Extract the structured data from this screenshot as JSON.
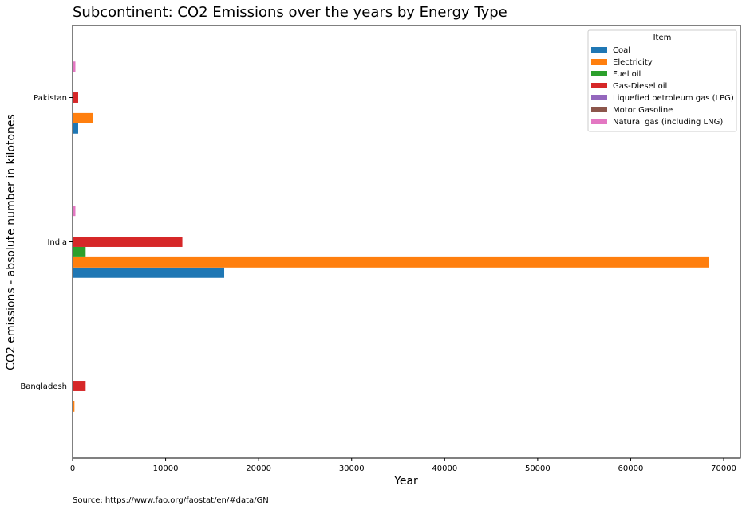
{
  "chart_data": {
    "type": "bar",
    "orientation": "horizontal",
    "title": "Subcontinent: CO2 Emissions over the years by Energy Type",
    "xlabel": "Year",
    "ylabel": "CO2 emissions - absolute number in kilotones",
    "categories": [
      "Bangladesh",
      "India",
      "Pakistan"
    ],
    "xlim": [
      0,
      71800
    ],
    "xticks": [
      0,
      10000,
      20000,
      30000,
      40000,
      50000,
      60000,
      70000
    ],
    "xtick_labels": [
      "0",
      "10000",
      "20000",
      "30000",
      "40000",
      "50000",
      "60000",
      "70000"
    ],
    "grid": false,
    "legend": {
      "title": "Item",
      "placement": "top-right"
    },
    "series": [
      {
        "name": "Coal",
        "color": "#1f77b4",
        "values": [
          0,
          16300,
          600
        ]
      },
      {
        "name": "Electricity",
        "color": "#ff7f0e",
        "values": [
          200,
          68400,
          2200
        ]
      },
      {
        "name": "Fuel oil",
        "color": "#2ca02c",
        "values": [
          0,
          1400,
          0
        ]
      },
      {
        "name": "Gas-Diesel oil",
        "color": "#d62728",
        "values": [
          1400,
          11800,
          600
        ]
      },
      {
        "name": "Liquefied petroleum gas (LPG)",
        "color": "#9467bd",
        "values": [
          0,
          0,
          0
        ]
      },
      {
        "name": "Motor Gasoline",
        "color": "#8c564b",
        "values": [
          0,
          0,
          0
        ]
      },
      {
        "name": "Natural gas (including LNG)",
        "color": "#e377c2",
        "values": [
          0,
          300,
          300
        ]
      }
    ]
  },
  "source": "Source: https://www.fao.org/faostat/en/#data/GN"
}
